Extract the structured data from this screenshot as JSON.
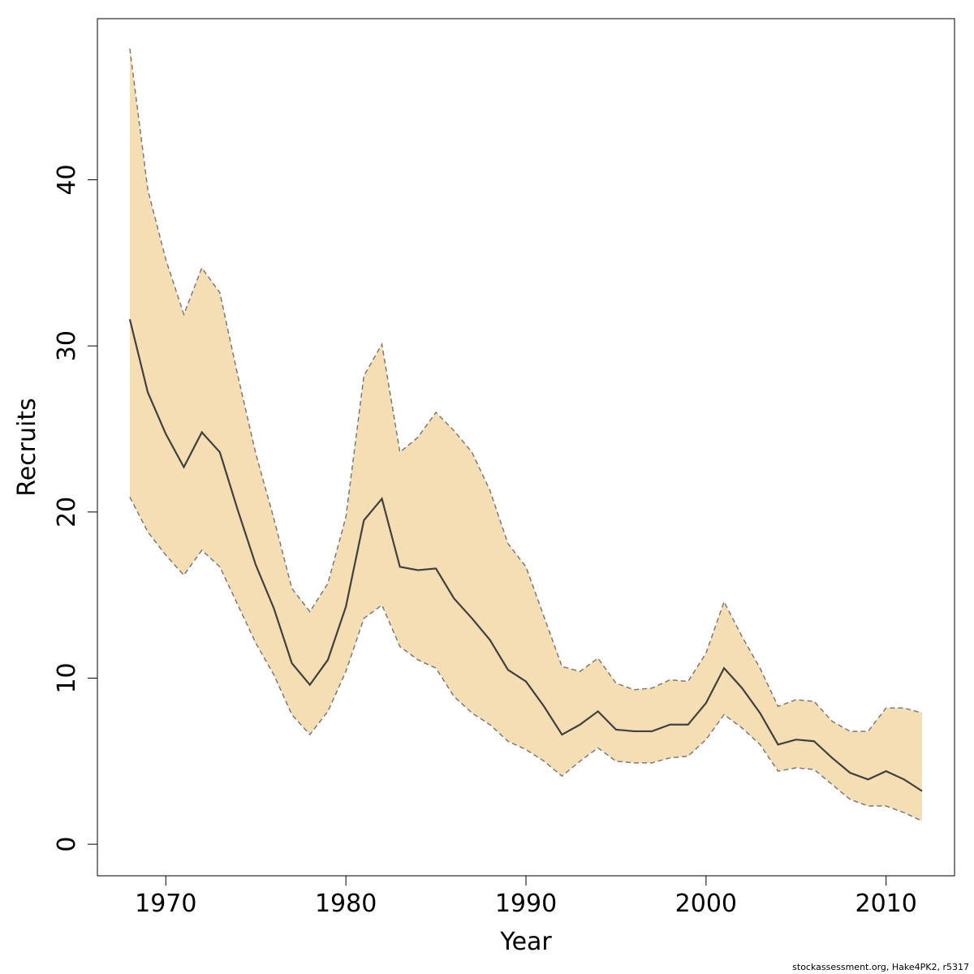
{
  "chart_data": {
    "type": "area",
    "xlabel": "Year",
    "ylabel": "Recruits",
    "xlim": [
      1966.2,
      2013.8
    ],
    "ylim": [
      -1.9,
      49.7
    ],
    "x_ticks": [
      1970,
      1980,
      1990,
      2000,
      2010
    ],
    "y_ticks": [
      0,
      10,
      20,
      30,
      40
    ],
    "x": [
      1968,
      1969,
      1970,
      1971,
      1972,
      1973,
      1974,
      1975,
      1976,
      1977,
      1978,
      1979,
      1980,
      1981,
      1982,
      1983,
      1984,
      1985,
      1986,
      1987,
      1988,
      1989,
      1990,
      1991,
      1992,
      1993,
      1994,
      1995,
      1996,
      1997,
      1998,
      1999,
      2000,
      2001,
      2002,
      2003,
      2004,
      2005,
      2006,
      2007,
      2008,
      2009,
      2010,
      2011,
      2012
    ],
    "series": [
      {
        "role": "estimate",
        "values": [
          31.6,
          27.2,
          24.7,
          22.7,
          24.8,
          23.6,
          20.1,
          16.8,
          14.2,
          10.9,
          9.6,
          11.1,
          14.3,
          19.5,
          20.8,
          16.7,
          16.5,
          16.6,
          14.8,
          13.6,
          12.3,
          10.5,
          9.8,
          8.3,
          6.6,
          7.2,
          8.0,
          6.9,
          6.8,
          6.8,
          7.2,
          7.2,
          8.5,
          10.6,
          9.4,
          7.9,
          6.0,
          6.3,
          6.2,
          5.2,
          4.3,
          3.9,
          4.4,
          3.9,
          3.2
        ]
      },
      {
        "role": "upper",
        "values": [
          47.9,
          39.4,
          35.2,
          31.9,
          34.7,
          33.2,
          28.2,
          23.5,
          19.6,
          15.4,
          14.0,
          15.7,
          19.7,
          28.2,
          30.1,
          23.6,
          24.5,
          26.0,
          24.9,
          23.6,
          21.3,
          18.1,
          16.7,
          13.7,
          10.7,
          10.4,
          11.2,
          9.7,
          9.3,
          9.4,
          9.9,
          9.8,
          11.5,
          14.6,
          12.5,
          10.6,
          8.3,
          8.7,
          8.6,
          7.4,
          6.8,
          6.8,
          8.2,
          8.2,
          7.9
        ]
      },
      {
        "role": "lower",
        "values": [
          20.9,
          18.8,
          17.4,
          16.2,
          17.7,
          16.7,
          14.4,
          12.1,
          10.2,
          7.8,
          6.6,
          8.0,
          10.4,
          13.6,
          14.4,
          11.9,
          11.1,
          10.6,
          8.9,
          7.9,
          7.2,
          6.2,
          5.7,
          5.0,
          4.1,
          5.0,
          5.8,
          5.0,
          4.9,
          4.9,
          5.2,
          5.3,
          6.3,
          7.8,
          7.0,
          6.0,
          4.4,
          4.6,
          4.5,
          3.6,
          2.7,
          2.3,
          2.3,
          1.9,
          1.4
        ]
      }
    ],
    "colors": {
      "band_fill": "#f5deb3",
      "band_edge": "#7a7a7a",
      "line": "#404040",
      "axis": "#000000"
    },
    "grid": false,
    "legend": "none"
  },
  "credit": "stockassessment.org, Hake4PK2, r5317"
}
